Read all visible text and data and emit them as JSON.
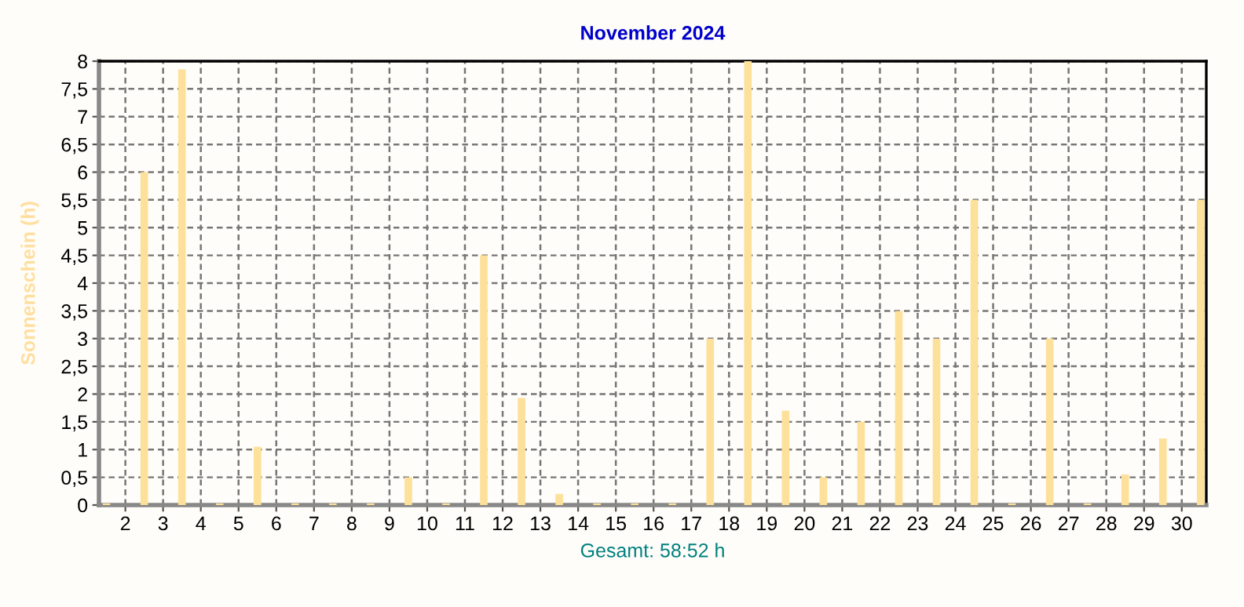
{
  "chart_data": {
    "type": "bar",
    "title": "November 2024",
    "ylabel": "Sonnenschein (h)",
    "annotations": [
      "Gesamt: 58:52 h"
    ],
    "x": [
      1.5,
      2.5,
      3.5,
      4.5,
      5.5,
      6.5,
      7.5,
      8.5,
      9.5,
      10.5,
      11.5,
      12.5,
      13.5,
      14.5,
      15.5,
      16.5,
      17.5,
      18.5,
      19.5,
      20.5,
      21.5,
      22.5,
      23.5,
      24.5,
      25.5,
      26.5,
      27.5,
      28.5,
      29.5,
      30.5
    ],
    "values": [
      0.03,
      6,
      7.85,
      0.03,
      1.05,
      0.03,
      0.03,
      0.03,
      0.5,
      0.03,
      4.5,
      1.93,
      0.2,
      0.03,
      0.03,
      0.03,
      3,
      8,
      1.7,
      0.5,
      1.5,
      3.5,
      3,
      5.5,
      0.03,
      3,
      0.03,
      0.55,
      1.2,
      5.5
    ],
    "color": "#fde09a",
    "xlim": [
      1.3,
      30.65
    ],
    "xticks": [
      2,
      3,
      4,
      5,
      6,
      7,
      8,
      9,
      10,
      11,
      12,
      13,
      14,
      15,
      16,
      17,
      18,
      19,
      20,
      21,
      22,
      23,
      24,
      25,
      26,
      27,
      28,
      29,
      30
    ],
    "ylim": [
      0,
      8
    ],
    "yticks": [
      0,
      {
        "value": 0.5,
        "label": "0,5"
      },
      1,
      {
        "value": 1.5,
        "label": "1,5"
      },
      2,
      {
        "value": 2.5,
        "label": "2,5"
      },
      3,
      {
        "value": 3.5,
        "label": "3,5"
      },
      4,
      {
        "value": 4.5,
        "label": "4,5"
      },
      5,
      {
        "value": 5.5,
        "label": "5,5"
      },
      6,
      {
        "value": 6.5,
        "label": "6,5"
      },
      7,
      {
        "value": 7.5,
        "label": "7,5"
      },
      8
    ],
    "grid": true,
    "legend": false
  }
}
